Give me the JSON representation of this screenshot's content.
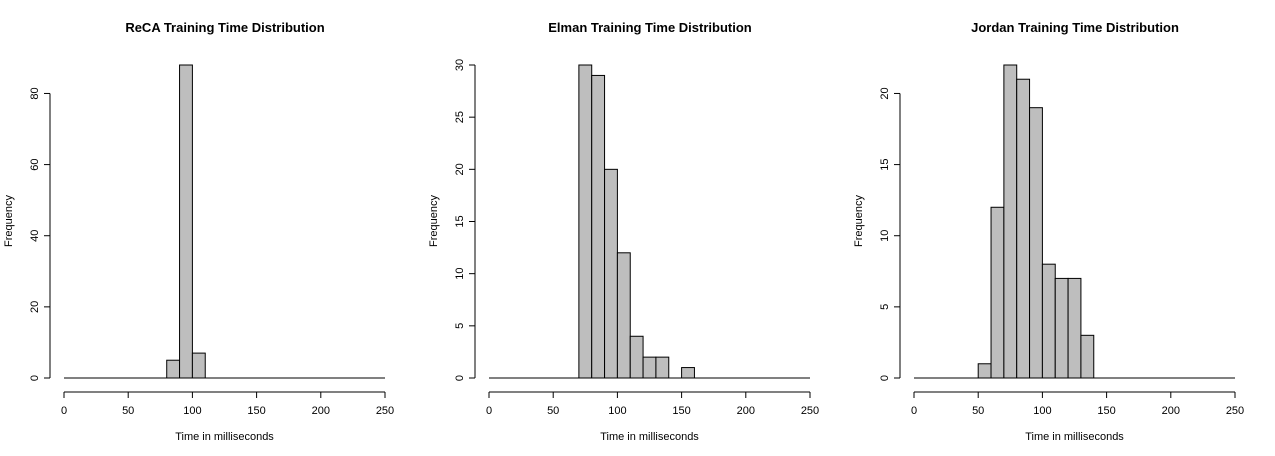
{
  "chart_data": [
    {
      "type": "bar",
      "title": "ReCA Training Time Distribution",
      "xlabel": "Time in milliseconds",
      "ylabel": "Frequency",
      "xlim": [
        0,
        250
      ],
      "ylim": [
        0,
        88
      ],
      "xticks": [
        0,
        50,
        100,
        150,
        200,
        250
      ],
      "yticks": [
        0,
        20,
        40,
        60,
        80
      ],
      "bins": [
        [
          80,
          90
        ],
        [
          90,
          100
        ],
        [
          100,
          110
        ]
      ],
      "values": [
        5,
        88,
        7
      ],
      "bar_color": "#bebebe",
      "grid": false
    },
    {
      "type": "bar",
      "title": "Elman Training Time Distribution",
      "xlabel": "Time in milliseconds",
      "ylabel": "Frequency",
      "xlim": [
        0,
        250
      ],
      "ylim": [
        0,
        30
      ],
      "xticks": [
        0,
        50,
        100,
        150,
        200,
        250
      ],
      "yticks": [
        0,
        5,
        10,
        15,
        20,
        25,
        30
      ],
      "bins": [
        [
          70,
          80
        ],
        [
          80,
          90
        ],
        [
          90,
          100
        ],
        [
          100,
          110
        ],
        [
          110,
          120
        ],
        [
          120,
          130
        ],
        [
          130,
          140
        ],
        [
          140,
          150
        ],
        [
          150,
          160
        ]
      ],
      "values": [
        30,
        29,
        20,
        12,
        4,
        2,
        2,
        0,
        1
      ],
      "bar_color": "#bebebe",
      "grid": false
    },
    {
      "type": "bar",
      "title": "Jordan Training Time Distribution",
      "xlabel": "Time in milliseconds",
      "ylabel": "Frequency",
      "xlim": [
        0,
        250
      ],
      "ylim": [
        0,
        22
      ],
      "xticks": [
        0,
        50,
        100,
        150,
        200,
        250
      ],
      "yticks": [
        0,
        5,
        10,
        15,
        20
      ],
      "bins": [
        [
          50,
          60
        ],
        [
          60,
          70
        ],
        [
          70,
          80
        ],
        [
          80,
          90
        ],
        [
          90,
          100
        ],
        [
          100,
          110
        ],
        [
          110,
          120
        ],
        [
          120,
          130
        ],
        [
          130,
          140
        ]
      ],
      "values": [
        1,
        12,
        22,
        21,
        19,
        8,
        7,
        7,
        3
      ],
      "bar_color": "#bebebe",
      "grid": false
    }
  ]
}
